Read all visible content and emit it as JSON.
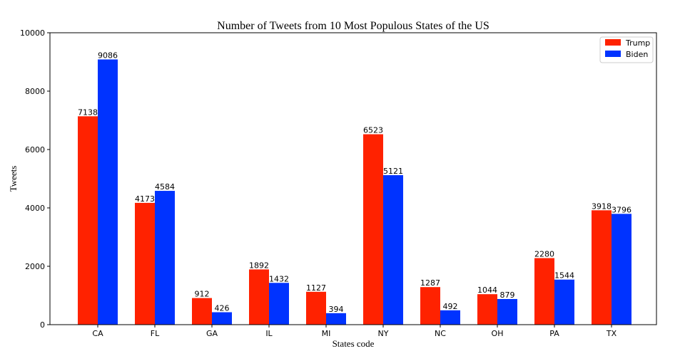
{
  "chart_data": {
    "type": "bar",
    "title": "Number of Tweets from 10 Most Populous States of the US",
    "xlabel": "States code",
    "ylabel": "Tweets",
    "categories": [
      "CA",
      "FL",
      "GA",
      "IL",
      "MI",
      "NY",
      "NC",
      "OH",
      "PA",
      "TX"
    ],
    "series": [
      {
        "name": "Trump",
        "color": "#ff2200",
        "values": [
          7138,
          4173,
          912,
          1892,
          1127,
          6523,
          1287,
          1044,
          2280,
          3918
        ]
      },
      {
        "name": "Biden",
        "color": "#0033ff",
        "values": [
          9086,
          4584,
          426,
          1432,
          394,
          5121,
          492,
          879,
          1544,
          3796
        ]
      }
    ],
    "ylim": [
      0,
      10000
    ],
    "yticks": [
      0,
      2000,
      4000,
      6000,
      8000,
      10000
    ],
    "grid": false,
    "legend_position": "top-right"
  }
}
